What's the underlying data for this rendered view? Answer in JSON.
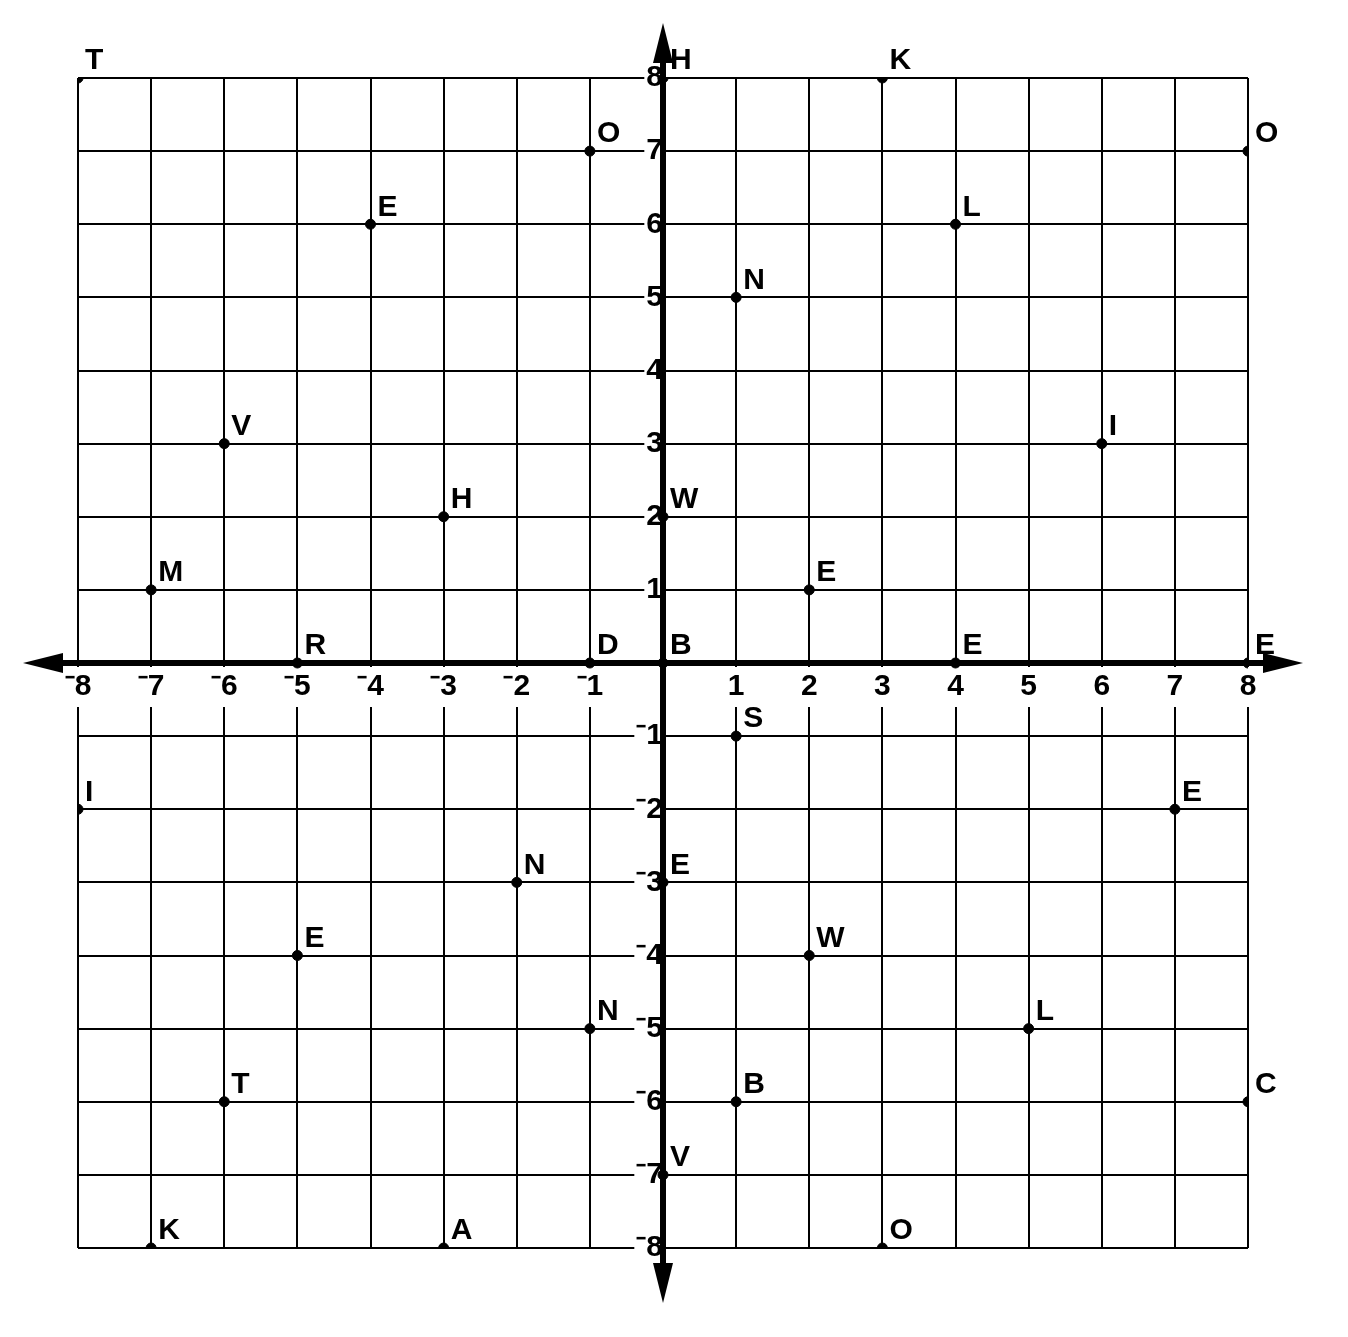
{
  "chart_data": {
    "type": "scatter",
    "xlim": [
      -8,
      8
    ],
    "ylim": [
      -8,
      8
    ],
    "xticks": [
      {
        "value": -8,
        "label": "⁻8"
      },
      {
        "value": -7,
        "label": "⁻7"
      },
      {
        "value": -6,
        "label": "⁻6"
      },
      {
        "value": -5,
        "label": "⁻5"
      },
      {
        "value": -4,
        "label": "⁻4"
      },
      {
        "value": -3,
        "label": "⁻3"
      },
      {
        "value": -2,
        "label": "⁻2"
      },
      {
        "value": -1,
        "label": "⁻1"
      },
      1,
      2,
      3,
      4,
      5,
      6,
      7,
      8
    ],
    "yticks": [
      {
        "value": -8,
        "label": "⁻8"
      },
      {
        "value": -7,
        "label": "⁻7"
      },
      {
        "value": -6,
        "label": "⁻6"
      },
      {
        "value": -5,
        "label": "⁻5"
      },
      {
        "value": -4,
        "label": "⁻4"
      },
      {
        "value": -3,
        "label": "⁻3"
      },
      {
        "value": -2,
        "label": "⁻2"
      },
      {
        "value": -1,
        "label": "⁻1"
      },
      1,
      2,
      3,
      4,
      5,
      6,
      7,
      8
    ],
    "grid": true,
    "marker": "circle",
    "series": [
      {
        "color": "#000000",
        "x": [
          -8,
          -1,
          -4,
          -6,
          -3,
          -7,
          -5,
          -1,
          0,
          3,
          8,
          4,
          1,
          6,
          0,
          2,
          0,
          4,
          8,
          -8,
          -2,
          -5,
          -1,
          -6,
          -7,
          -3,
          1,
          7,
          0,
          2,
          5,
          1,
          8,
          0,
          3
        ],
        "values": [
          8,
          7,
          6,
          3,
          2,
          1,
          0,
          0,
          8,
          8,
          7,
          6,
          5,
          3,
          2,
          1,
          0,
          0,
          0,
          -2,
          -3,
          -4,
          -5,
          -6,
          -8,
          -8,
          -1,
          -2,
          -3,
          -4,
          -5,
          -6,
          -6,
          -7,
          -8
        ],
        "value_labels": [
          "T",
          "O",
          "E",
          "V",
          "H",
          "M",
          "R",
          "D",
          "H",
          "K",
          "O",
          "L",
          "N",
          "I",
          "W",
          "E",
          "B",
          "E",
          "E",
          "I",
          "N",
          "E",
          "N",
          "T",
          "K",
          "A",
          "S",
          "E",
          "E",
          "W",
          "L",
          "B",
          "C",
          "V",
          "O"
        ]
      }
    ]
  }
}
